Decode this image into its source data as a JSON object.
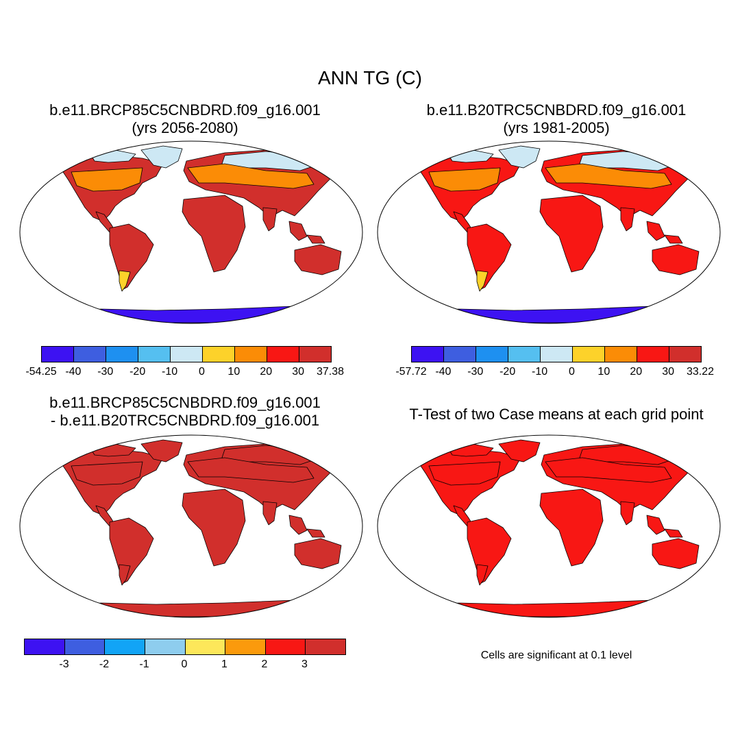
{
  "figure": {
    "title": "ANN TG (C)"
  },
  "panels": {
    "case": {
      "title_line1": "b.e11.BRCP85C5CNBDRD.f09_g16.001",
      "title_line2": "(yrs 2056-2080)"
    },
    "control": {
      "title_line1": "b.e11.B20TRC5CNBDRD.f09_g16.001",
      "title_line2": "(yrs 1981-2005)"
    },
    "diff": {
      "title_line1": "b.e11.BRCP85C5CNBDRD.f09_g16.001",
      "title_line2": "- b.e11.B20TRC5CNBDRD.f09_g16.001"
    },
    "ttest": {
      "title": "T-Test of two Case means at each grid point",
      "note": "Cells are significant at 0.1 level"
    }
  },
  "colorbars": {
    "case": {
      "colors": [
        "#3d12f2",
        "#3e5ee0",
        "#1e90f0",
        "#55bff0",
        "#cde8f4",
        "#fdd22a",
        "#fb8c06",
        "#f81714",
        "#d12f2c"
      ],
      "labels": [
        "-54.25",
        "-40",
        "-30",
        "-20",
        "-10",
        "0",
        "10",
        "20",
        "30",
        "37.38"
      ]
    },
    "control": {
      "colors": [
        "#3d12f2",
        "#3e5ee0",
        "#1e90f0",
        "#55bff0",
        "#cde8f4",
        "#fdd22a",
        "#fb8c06",
        "#f81714",
        "#d12f2c"
      ],
      "labels": [
        "-57.72",
        "-40",
        "-30",
        "-20",
        "-10",
        "0",
        "10",
        "20",
        "30",
        "33.22"
      ]
    },
    "diff": {
      "colors": [
        "#3d12f2",
        "#3e5ee0",
        "#12a4f6",
        "#8ecdee",
        "#fde75a",
        "#fb9a0c",
        "#f81714",
        "#d12f2c"
      ],
      "labels": [
        "-3",
        "-2",
        "-1",
        "0",
        "1",
        "2",
        "3"
      ]
    }
  },
  "map_fill": {
    "case": {
      "ocean": "#ffffff",
      "land": "#d12f2c",
      "south": "#fdd22a",
      "north": "#fb8c06",
      "arctic": "#cde8f4",
      "antarctica": "#3d12f2"
    },
    "control": {
      "ocean": "#ffffff",
      "land": "#f81714",
      "south": "#fdd22a",
      "north": "#fb8c06",
      "arctic": "#cde8f4",
      "antarctica": "#3d12f2"
    },
    "diff": {
      "ocean": "#ffffff",
      "land": "#d12f2c",
      "south": "#d12f2c",
      "north": "#d12f2c",
      "arctic": "#d12f2c",
      "antarctica": "#d12f2c"
    },
    "ttest": {
      "ocean": "#ffffff",
      "land": "#f81714",
      "south": "#f81714",
      "north": "#f81714",
      "arctic": "#f81714",
      "antarctica": "#f81714"
    }
  }
}
